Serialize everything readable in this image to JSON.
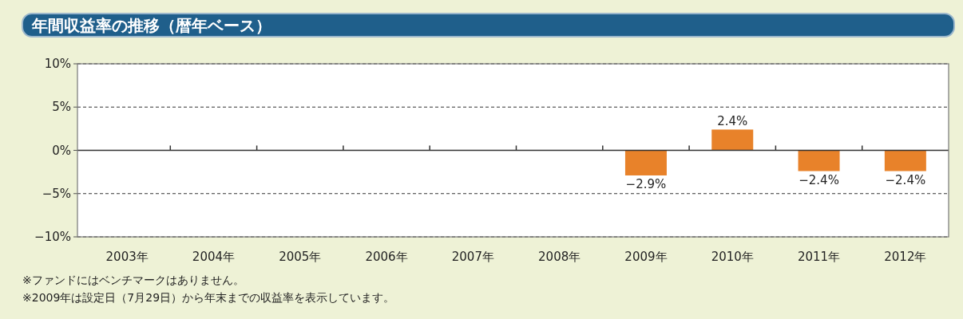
{
  "chart_data": {
    "type": "bar",
    "title": "年間収益率の推移（暦年ベース）",
    "categories": [
      "2003年",
      "2004年",
      "2005年",
      "2006年",
      "2007年",
      "2008年",
      "2009年",
      "2010年",
      "2011年",
      "2012年"
    ],
    "values": [
      null,
      null,
      null,
      null,
      null,
      null,
      -2.9,
      2.4,
      -2.4,
      -2.4
    ],
    "value_labels": [
      null,
      null,
      null,
      null,
      null,
      null,
      "−2.9%",
      "2.4%",
      "−2.4%",
      "−2.4%"
    ],
    "color": "#e8822a",
    "ylim": [
      -10,
      10
    ],
    "yticks": [
      {
        "value": 10,
        "label": "10%"
      },
      {
        "value": 5,
        "label": "5%"
      },
      {
        "value": 0,
        "label": "0%"
      },
      {
        "value": -5,
        "label": "−5%"
      },
      {
        "value": -10,
        "label": "−10%"
      }
    ],
    "grid": "y",
    "annotations": [
      "※ファンドにはベンチマークはありません。",
      "※2009年は設定日（7月29日）から年末までの収益率を表示しています。"
    ]
  }
}
